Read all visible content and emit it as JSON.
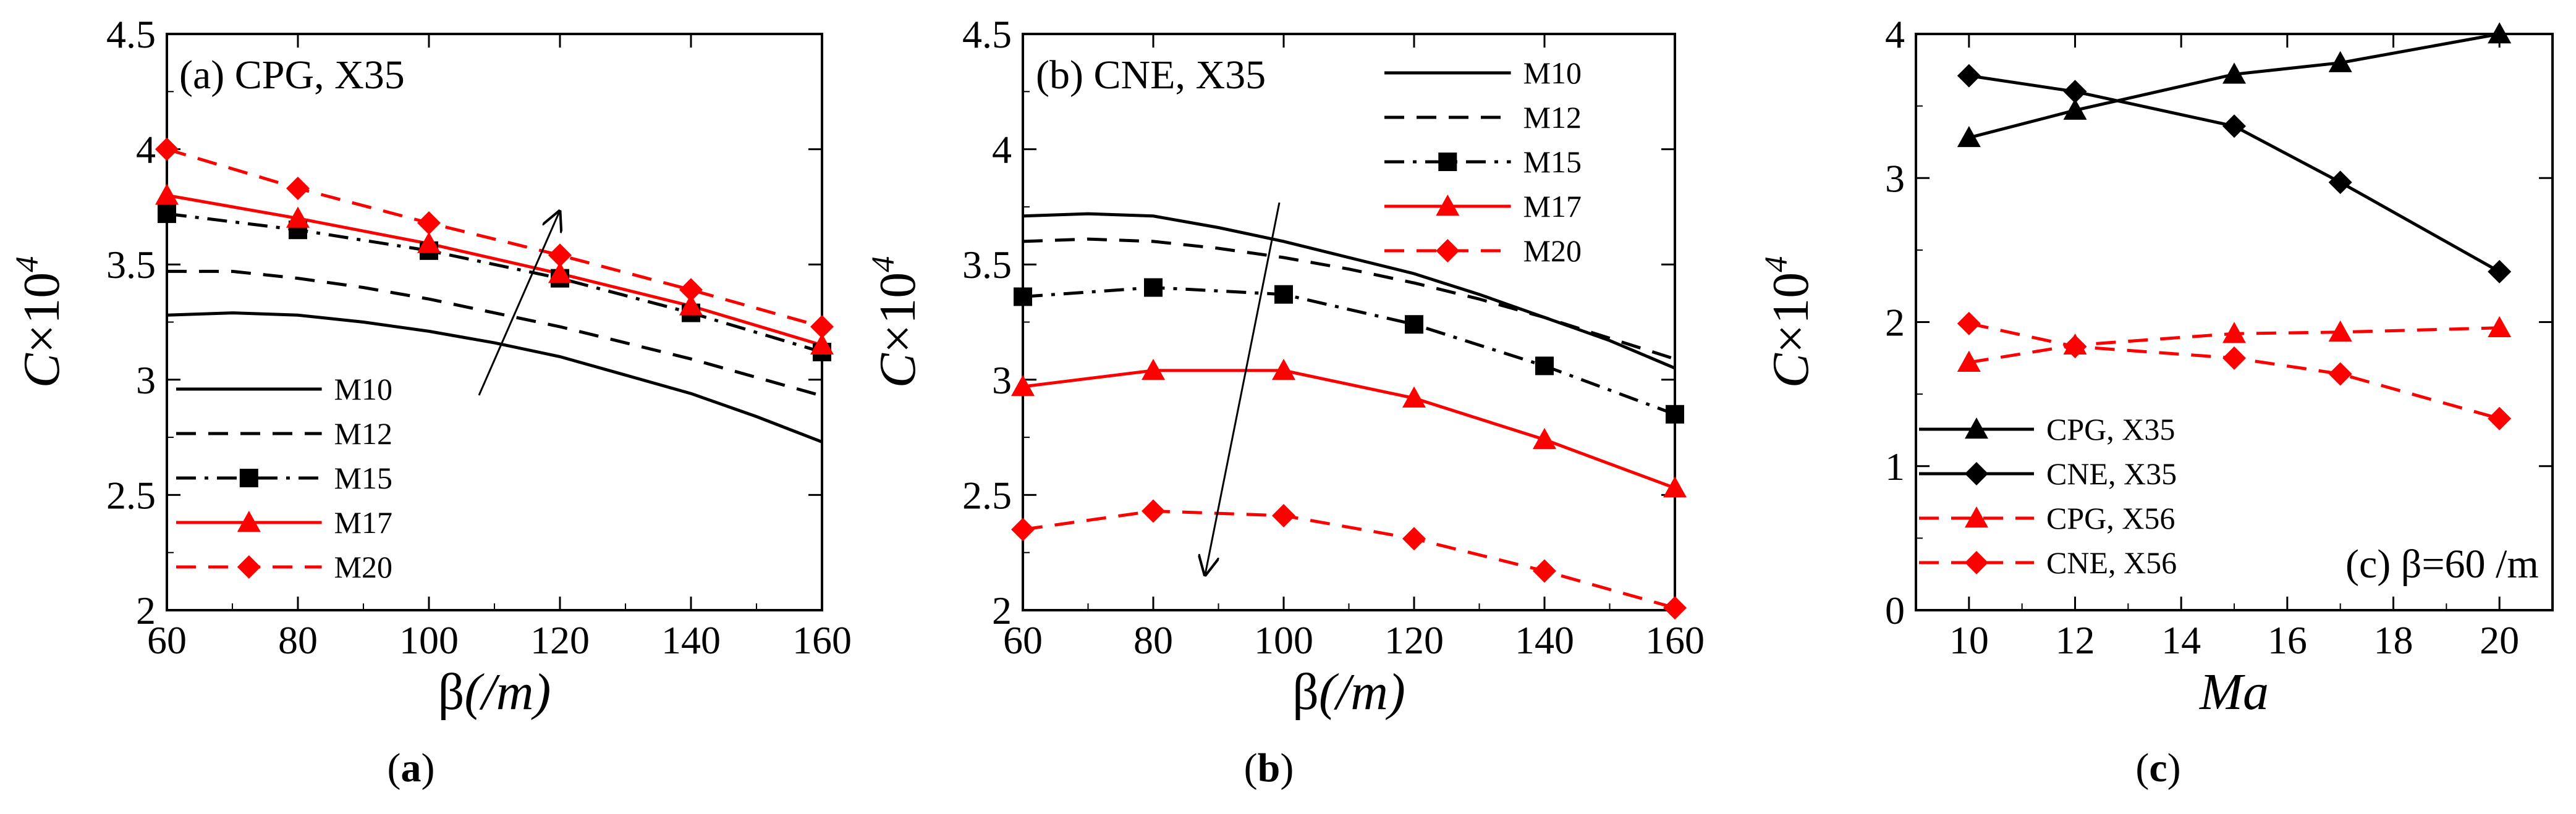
{
  "colors": {
    "black": "#000000",
    "red": "#ff0000"
  },
  "chart_data": [
    {
      "type": "line",
      "panel_label": "(a) CPG, X35",
      "caption": {
        "open": "(",
        "letter": "a",
        "close": ")"
      },
      "xlabel": {
        "main": "β",
        "unit": "(/m)"
      },
      "ylabel": {
        "main": "C×10",
        "exp": "4"
      },
      "xlim": [
        60,
        160
      ],
      "ylim": [
        2,
        4.5
      ],
      "xticks": [
        "60",
        "80",
        "100",
        "120",
        "140",
        "160"
      ],
      "yticks": [
        "2",
        "2.5",
        "3",
        "3.5",
        "4",
        "4.5"
      ],
      "legend_position": "bottom-left",
      "annotation": "arrow pointing up-right (increasing Mach number)",
      "series": [
        {
          "name": "M10",
          "color": "#000000",
          "dash": "solid",
          "marker": "none",
          "x": [
            60,
            70,
            80,
            90,
            100,
            110,
            120,
            130,
            140,
            150,
            160
          ],
          "y": [
            3.28,
            3.29,
            3.28,
            3.25,
            3.21,
            3.16,
            3.1,
            3.02,
            2.94,
            2.84,
            2.73
          ]
        },
        {
          "name": "M12",
          "color": "#000000",
          "dash": "dash",
          "marker": "none",
          "x": [
            60,
            70,
            80,
            90,
            100,
            110,
            120,
            130,
            140,
            150,
            160
          ],
          "y": [
            3.47,
            3.47,
            3.44,
            3.4,
            3.35,
            3.29,
            3.23,
            3.16,
            3.09,
            3.01,
            2.93
          ]
        },
        {
          "name": "M15",
          "color": "#000000",
          "dash": "dashdot",
          "marker": "square",
          "x": [
            60,
            80,
            100,
            120,
            140,
            160
          ],
          "y": [
            3.72,
            3.65,
            3.56,
            3.44,
            3.29,
            3.12
          ]
        },
        {
          "name": "M17",
          "color": "#ff0000",
          "dash": "solid",
          "marker": "triangle",
          "x": [
            60,
            80,
            100,
            120,
            140,
            160
          ],
          "y": [
            3.8,
            3.7,
            3.59,
            3.46,
            3.32,
            3.15
          ]
        },
        {
          "name": "M20",
          "color": "#ff0000",
          "dash": "dash",
          "marker": "diamond",
          "x": [
            60,
            80,
            100,
            120,
            140,
            160
          ],
          "y": [
            4.0,
            3.83,
            3.68,
            3.54,
            3.39,
            3.23
          ]
        }
      ]
    },
    {
      "type": "line",
      "panel_label": "(b) CNE, X35",
      "caption": {
        "open": "(",
        "letter": "b",
        "close": ")"
      },
      "xlabel": {
        "main": "β",
        "unit": "(/m)"
      },
      "ylabel": {
        "main": "C×10",
        "exp": "4"
      },
      "xlim": [
        60,
        160
      ],
      "ylim": [
        2,
        4.5
      ],
      "xticks": [
        "60",
        "80",
        "100",
        "120",
        "140",
        "160"
      ],
      "yticks": [
        "2",
        "2.5",
        "3",
        "3.5",
        "4",
        "4.5"
      ],
      "legend_position": "top-right",
      "annotation": "arrow pointing down (increasing Mach number)",
      "series": [
        {
          "name": "M10",
          "color": "#000000",
          "dash": "solid",
          "marker": "none",
          "x": [
            60,
            70,
            80,
            90,
            100,
            110,
            120,
            130,
            140,
            150,
            160
          ],
          "y": [
            3.71,
            3.72,
            3.71,
            3.66,
            3.6,
            3.53,
            3.46,
            3.37,
            3.27,
            3.17,
            3.05
          ]
        },
        {
          "name": "M12",
          "color": "#000000",
          "dash": "dash",
          "marker": "none",
          "x": [
            60,
            70,
            80,
            90,
            100,
            110,
            120,
            130,
            140,
            150,
            160
          ],
          "y": [
            3.6,
            3.61,
            3.6,
            3.57,
            3.53,
            3.48,
            3.42,
            3.35,
            3.27,
            3.18,
            3.09
          ]
        },
        {
          "name": "M15",
          "color": "#000000",
          "dash": "dashdot",
          "marker": "square",
          "x": [
            60,
            80,
            100,
            120,
            140,
            160
          ],
          "y": [
            3.36,
            3.4,
            3.37,
            3.24,
            3.06,
            2.85
          ]
        },
        {
          "name": "M17",
          "color": "#ff0000",
          "dash": "solid",
          "marker": "triangle",
          "x": [
            60,
            80,
            100,
            120,
            140,
            160
          ],
          "y": [
            2.97,
            3.04,
            3.04,
            2.92,
            2.74,
            2.53
          ]
        },
        {
          "name": "M20",
          "color": "#ff0000",
          "dash": "dash",
          "marker": "diamond",
          "x": [
            60,
            80,
            100,
            120,
            140,
            160
          ],
          "y": [
            2.35,
            2.43,
            2.41,
            2.31,
            2.17,
            2.01
          ]
        }
      ]
    },
    {
      "type": "line",
      "panel_label": "(c) β=60 /m",
      "caption": {
        "open": "(",
        "letter": "c",
        "close": ")"
      },
      "xlabel": {
        "main": "Ma",
        "unit": ""
      },
      "ylabel": {
        "main": "C×10",
        "exp": "4"
      },
      "xlim": [
        9,
        21
      ],
      "ylim": [
        0,
        4
      ],
      "xticks": [
        "10",
        "12",
        "14",
        "16",
        "18",
        "20"
      ],
      "yticks": [
        "0",
        "1",
        "2",
        "3",
        "4"
      ],
      "legend_position": "bottom-left",
      "series": [
        {
          "name": "CPG, X35",
          "color": "#000000",
          "dash": "solid",
          "marker": "triangle",
          "x": [
            10,
            12,
            15,
            17,
            20
          ],
          "y": [
            3.28,
            3.47,
            3.72,
            3.8,
            4.0
          ]
        },
        {
          "name": "CNE, X35",
          "color": "#000000",
          "dash": "solid",
          "marker": "diamond",
          "x": [
            10,
            12,
            15,
            17,
            20
          ],
          "y": [
            3.71,
            3.6,
            3.36,
            2.97,
            2.35
          ]
        },
        {
          "name": "CPG, X56",
          "color": "#ff0000",
          "dash": "dash",
          "marker": "triangle",
          "x": [
            10,
            12,
            15,
            17,
            20
          ],
          "y": [
            1.72,
            1.84,
            1.92,
            1.93,
            1.96
          ]
        },
        {
          "name": "CNE, X56",
          "color": "#ff0000",
          "dash": "dash",
          "marker": "diamond",
          "x": [
            10,
            12,
            15,
            17,
            20
          ],
          "y": [
            1.99,
            1.83,
            1.75,
            1.64,
            1.33
          ]
        }
      ]
    }
  ]
}
